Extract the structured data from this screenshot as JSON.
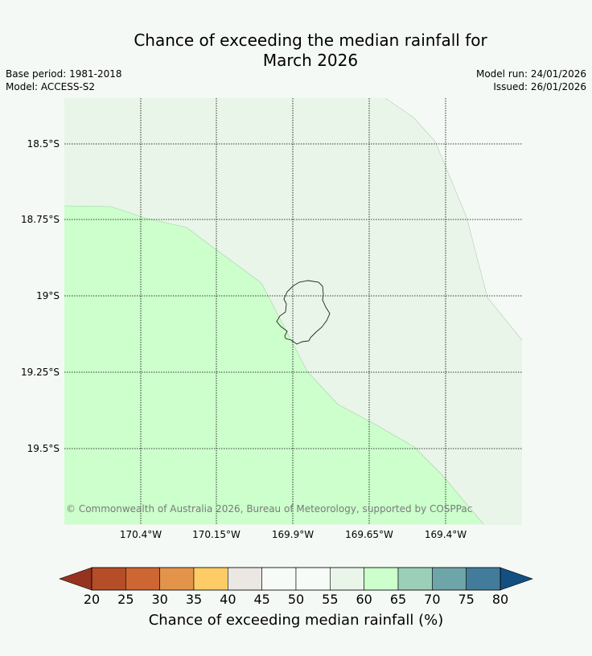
{
  "title_line1": "Chance of exceeding the median rainfall for",
  "title_line2": "March 2026",
  "meta": {
    "base_period": "Base period: 1981-2018",
    "model": "Model: ACCESS-S2",
    "model_run": "Model run: 24/01/2026",
    "issued": "Issued: 26/01/2026"
  },
  "map": {
    "lat_labels": [
      "18.5°S",
      "18.75°S",
      "19°S",
      "19.25°S",
      "19.5°S"
    ],
    "lon_labels": [
      "170.4°W",
      "170.15°W",
      "169.9°W",
      "169.65°W",
      "169.4°W"
    ],
    "credit": "© Commonwealth of Australia 2026, Bureau of Meteorology, supported by COSPPac",
    "regions": [
      {
        "category": "55-60",
        "color": "#e9f5e9"
      },
      {
        "category": "60-65",
        "color": "#ccffcc"
      }
    ]
  },
  "colorbar": {
    "ticks": [
      "20",
      "25",
      "30",
      "35",
      "40",
      "45",
      "50",
      "55",
      "60",
      "65",
      "70",
      "75",
      "80"
    ],
    "under_color": "#96331f",
    "over_color": "#144f82",
    "colors": [
      "#b44d28",
      "#cd6633",
      "#e3944a",
      "#fecc66",
      "#ebe8e3",
      "#f7fbf7",
      "#f7fbf7",
      "#e9f5e9",
      "#ccffcc",
      "#9ccfb7",
      "#6ea5a8",
      "#437c9a"
    ],
    "label": "Chance of exceeding median rainfall (%)"
  }
}
